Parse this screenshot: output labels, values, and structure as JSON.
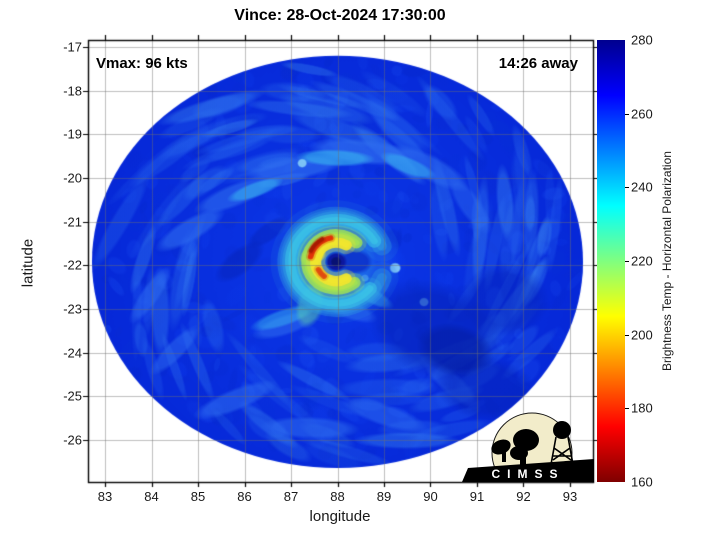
{
  "title": "Vince: 28-Oct-2024 17:30:00",
  "annotations": {
    "vmax": "Vmax: 96 kts",
    "eta": "14:26 away"
  },
  "axes": {
    "x": {
      "label": "longitude",
      "ticks": [
        83,
        84,
        85,
        86,
        87,
        88,
        89,
        90,
        91,
        92,
        93
      ],
      "domain": [
        82.634,
        93.495
      ]
    },
    "y": {
      "label": "latitude",
      "ticks": [
        -17,
        -18,
        -19,
        -20,
        -21,
        -22,
        -23,
        -24,
        -25,
        -26
      ],
      "domain": [
        -16.84,
        -26.96
      ]
    }
  },
  "colorbar": {
    "label": "Brightness Temp - Horizontal Polarization",
    "ticks": [
      280,
      260,
      240,
      220,
      200,
      180,
      160
    ],
    "domain": [
      160,
      280
    ],
    "stops": [
      {
        "p": 0,
        "c": "#00008f"
      },
      {
        "p": 12.5,
        "c": "#0000ff"
      },
      {
        "p": 37.5,
        "c": "#00ffff"
      },
      {
        "p": 62.5,
        "c": "#ffff00"
      },
      {
        "p": 87.5,
        "c": "#ff0000"
      },
      {
        "p": 100,
        "c": "#7f0000"
      }
    ]
  },
  "logo": {
    "text": "CIMSS"
  },
  "chart_data": {
    "type": "heatmap",
    "title": "Vince: 28-Oct-2024 17:30:00",
    "xlabel": "longitude",
    "ylabel": "latitude",
    "xlim": [
      82.634,
      93.495
    ],
    "ylim": [
      -26.96,
      -16.84
    ],
    "grid": true,
    "colorbar_label": "Brightness Temp - Horizontal Polarization",
    "colorbar_range": [
      160,
      280
    ],
    "storm_max_wind_kts": 96,
    "time_to_obs": "14:26 away",
    "storm_render": {
      "swath": {
        "lon": 88.0,
        "lat": -21.92,
        "rx": 5.28,
        "ry": 4.72
      },
      "base": {
        "inner": "#0c38e8",
        "outer": "#0628d8"
      },
      "noise": {
        "seed": 7,
        "count": 480,
        "palette": [
          "#0527c8",
          "#0630d6",
          "#0d3cee",
          "#1a4ff2",
          "#0a2ad0"
        ],
        "streaks": 120,
        "streak_palette": [
          "#2563ee",
          "#2e72f0",
          "#3e8cf2"
        ]
      },
      "blobs": [
        {
          "lon": 84.83,
          "lat": -21.19,
          "rx": 0.86,
          "ry": 0.27,
          "rot": -30,
          "c": "#2f6df0",
          "a": 0.6
        },
        {
          "lon": 85.8,
          "lat": -20.39,
          "rx": 0.97,
          "ry": 0.27,
          "rot": -22,
          "c": "#2f6df0",
          "a": 0.6
        },
        {
          "lon": 87.09,
          "lat": -19.77,
          "rx": 1.08,
          "ry": 0.27,
          "rot": -8,
          "c": "#2f6df0",
          "a": 0.65
        },
        {
          "lon": 88.53,
          "lat": -19.4,
          "rx": 1.18,
          "ry": 0.29,
          "rot": 6,
          "c": "#2f6df0",
          "a": 0.65
        },
        {
          "lon": 89.99,
          "lat": -19.77,
          "rx": 0.97,
          "ry": 0.3,
          "rot": 28,
          "c": "#2f6df0",
          "a": 0.55
        },
        {
          "lon": 90.85,
          "lat": -20.62,
          "rx": 0.75,
          "ry": 0.26,
          "rot": 55,
          "c": "#2f6df0",
          "a": 0.45
        },
        {
          "lon": 83.97,
          "lat": -22.68,
          "rx": 0.75,
          "ry": 0.22,
          "rot": -55,
          "c": "#2f6df0",
          "a": 0.5
        },
        {
          "lon": 84.51,
          "lat": -23.94,
          "rx": 0.75,
          "ry": 0.22,
          "rot": -45,
          "c": "#2f6df0",
          "a": 0.5
        },
        {
          "lon": 85.8,
          "lat": -25.08,
          "rx": 0.97,
          "ry": 0.26,
          "rot": -22,
          "c": "#2f6df0",
          "a": 0.55
        },
        {
          "lon": 87.41,
          "lat": -25.72,
          "rx": 1.08,
          "ry": 0.26,
          "rot": 2,
          "c": "#2f6df0",
          "a": 0.55
        },
        {
          "lon": 89.02,
          "lat": -25.43,
          "rx": 0.97,
          "ry": 0.26,
          "rot": 18,
          "c": "#2f6df0",
          "a": 0.5
        },
        {
          "lon": 90.42,
          "lat": -24.67,
          "rx": 0.86,
          "ry": 0.26,
          "rot": 42,
          "c": "#2f6df0",
          "a": 0.45
        },
        {
          "lon": 86.87,
          "lat": -23.37,
          "rx": 0.75,
          "ry": 0.24,
          "rot": -18,
          "c": "#2f6df0",
          "a": 0.55
        },
        {
          "lon": 88.27,
          "lat": -23.02,
          "rx": 0.64,
          "ry": 0.22,
          "rot": 20,
          "c": "#2f6df0",
          "a": 0.5
        },
        {
          "lon": 86.23,
          "lat": -20.27,
          "rx": 0.65,
          "ry": 0.18,
          "rot": -20,
          "c": "#38b2f0",
          "a": 0.6
        },
        {
          "lon": 87.95,
          "lat": -19.54,
          "rx": 0.86,
          "ry": 0.2,
          "rot": 2,
          "c": "#38b2f0",
          "a": 0.65
        },
        {
          "lon": 89.52,
          "lat": -19.72,
          "rx": 0.65,
          "ry": 0.2,
          "rot": 22,
          "c": "#38b2f0",
          "a": 0.55
        },
        {
          "lon": 86.83,
          "lat": -23.2,
          "rx": 0.75,
          "ry": 0.2,
          "rot": -18,
          "c": "#38b2f0",
          "a": 0.5
        },
        {
          "lon": 88.74,
          "lat": -22.7,
          "rx": 0.54,
          "ry": 0.18,
          "rot": 28,
          "c": "#38b2f0",
          "a": 0.5
        },
        {
          "lon": 89.24,
          "lat": -22.06,
          "rx": 0.13,
          "ry": 0.13,
          "rot": 0,
          "c": "#9ae4fa",
          "a": 0.85
        },
        {
          "lon": 87.24,
          "lat": -19.66,
          "rx": 0.11,
          "ry": 0.11,
          "rot": 0,
          "c": "#9ae4fa",
          "a": 0.75
        },
        {
          "lon": 89.86,
          "lat": -22.84,
          "rx": 0.11,
          "ry": 0.11,
          "rot": 0,
          "c": "#7ad0f5",
          "a": 0.7
        },
        {
          "lon": 88.59,
          "lat": -22.29,
          "rx": 0.09,
          "ry": 0.09,
          "rot": 0,
          "c": "#9ae4fa",
          "a": 0.7
        },
        {
          "lon": 90.1,
          "lat": -23.48,
          "rx": 1.5,
          "ry": 1.1,
          "rot": 20,
          "c": "#0521b4",
          "a": 0.5
        },
        {
          "lon": 91.17,
          "lat": -24.81,
          "rx": 1.1,
          "ry": 0.75,
          "rot": 10,
          "c": "#0521b4",
          "a": 0.45
        },
        {
          "lon": 91.6,
          "lat": -22.79,
          "rx": 0.95,
          "ry": 0.85,
          "rot": 0,
          "c": "#0521b4",
          "a": 0.4
        },
        {
          "lon": 85.9,
          "lat": -21.92,
          "rx": 0.65,
          "ry": 0.3,
          "rot": -38,
          "c": "#0521b4",
          "a": 0.45
        },
        {
          "lon": 86.51,
          "lat": -21.24,
          "rx": 0.55,
          "ry": 0.22,
          "rot": -35,
          "c": "#0521b4",
          "a": 0.4
        },
        {
          "lon": 90.53,
          "lat": -23.94,
          "rx": 0.85,
          "ry": 0.6,
          "rot": 15,
          "c": "#041a98",
          "a": 0.45
        },
        {
          "lon": 88.0,
          "lat": -21.95,
          "rx": 1.35,
          "ry": 1.25,
          "rot": 0,
          "c": "#1b5cee",
          "a": 0.5
        },
        {
          "lon": 87.85,
          "lat": -21.95,
          "rx": 1.0,
          "ry": 0.95,
          "rot": 0,
          "c": "#2798e8",
          "a": 0.45
        },
        {
          "lon": 87.41,
          "lat": -22.91,
          "rx": 0.3,
          "ry": 0.55,
          "rot": 15,
          "c": "#5fd6a0",
          "a": 0.45
        },
        {
          "lon": 88.38,
          "lat": -21.92,
          "rx": 0.38,
          "ry": 0.3,
          "rot": 0,
          "c": "#0a2ac8",
          "a": 0.8
        },
        {
          "lon": 87.47,
          "lat": -21.78,
          "rx": 0.3,
          "ry": 0.22,
          "rot": -20,
          "c": "#f5ed2e",
          "a": 0.95
        }
      ],
      "rings": [
        {
          "r": 1.05,
          "w": 0.42,
          "a0": 20,
          "a1": 340,
          "c": "#2f9ae0",
          "a": 0.4
        },
        {
          "r": 0.95,
          "w": 0.3,
          "a0": 40,
          "a1": 330,
          "c": "#3cc8e8",
          "a": 0.55
        },
        {
          "r": 0.62,
          "w": 0.26,
          "a0": 50,
          "a1": 315,
          "c": "#a0e055",
          "a": 0.85
        },
        {
          "r": 0.44,
          "w": 0.24,
          "a0": 60,
          "a1": 300,
          "c": "#f0e62e",
          "a": 0.95
        },
        {
          "r": 0.56,
          "w": 0.12,
          "a0": 192,
          "a1": 258,
          "c": "#e03208",
          "a": 0.95
        },
        {
          "r": 0.6,
          "w": 0.09,
          "a0": 205,
          "a1": 240,
          "c": "#a81a02",
          "a": 0.9
        },
        {
          "r": 0.42,
          "w": 0.12,
          "a0": 128,
          "a1": 155,
          "c": "#e04a10",
          "a": 0.9
        }
      ],
      "eye": {
        "lon": 87.97,
        "lat": -21.92,
        "r": 0.21,
        "c": "#0c17a0",
        "inner": "#081173"
      }
    }
  }
}
